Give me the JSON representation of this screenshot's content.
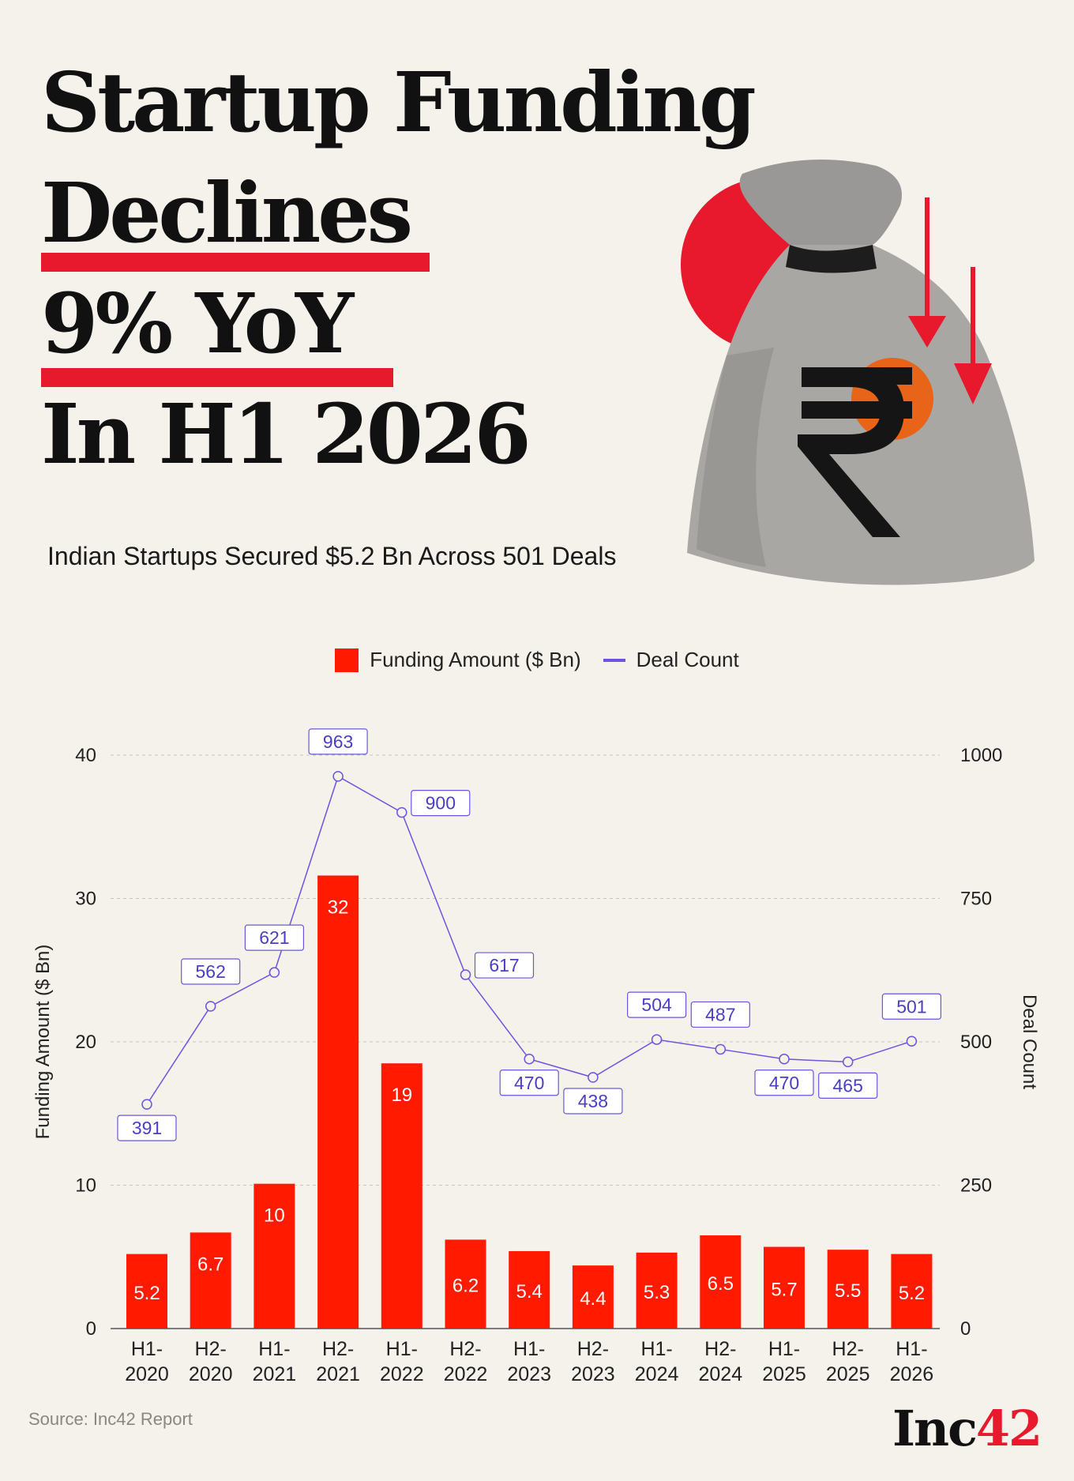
{
  "headline": {
    "line1": "Startup Funding",
    "line2": "Declines",
    "line3": "9% YoY",
    "line4": "In H1 2026"
  },
  "subtitle": "Indian Startups Secured $5.2 Bn Across 501 Deals",
  "hero_icon": "rupee-money-bag-icon",
  "colors": {
    "accent": "#e8192c",
    "bar": "#ff1a00",
    "line": "#6a55e0",
    "background": "#f5f1eb"
  },
  "chart_data": {
    "type": "bar+line",
    "categories": [
      "H1-2020",
      "H2-2020",
      "H1-2021",
      "H2-2021",
      "H1-2022",
      "H2-2022",
      "H1-2023",
      "H2-2023",
      "H1-2024",
      "H2-2024",
      "H1-2025",
      "H2-2025",
      "H1-2026"
    ],
    "x_tick_labels": [
      [
        "H1-",
        "2020"
      ],
      [
        "H2-",
        "2020"
      ],
      [
        "H1-",
        "2021"
      ],
      [
        "H2-",
        "2021"
      ],
      [
        "H1-",
        "2022"
      ],
      [
        "H2-",
        "2022"
      ],
      [
        "H1-",
        "2023"
      ],
      [
        "H2-",
        "2023"
      ],
      [
        "H1-",
        "2024"
      ],
      [
        "H2-",
        "2024"
      ],
      [
        "H1-",
        "2025"
      ],
      [
        "H2-",
        "2025"
      ],
      [
        "H1-",
        "2026"
      ]
    ],
    "series": [
      {
        "name": "Funding Amount ($ Bn)",
        "type": "bar",
        "axis": "left",
        "values": [
          5.2,
          6.7,
          10.1,
          31.6,
          18.5,
          6.2,
          5.4,
          4.4,
          5.3,
          6.5,
          5.7,
          5.5,
          5.2
        ],
        "labels": [
          "5.2",
          "6.7",
          "10",
          "32",
          "19",
          "6.2",
          "5.4",
          "4.4",
          "5.3",
          "6.5",
          "5.7",
          "5.5",
          "5.2"
        ]
      },
      {
        "name": "Deal Count",
        "type": "line",
        "axis": "right",
        "values": [
          391,
          562,
          621,
          963,
          900,
          617,
          470,
          438,
          504,
          487,
          470,
          465,
          501
        ],
        "labels": [
          "391",
          "562",
          "621",
          "963",
          "900",
          "617",
          "470",
          "438",
          "504",
          "487",
          "470",
          "465",
          "501"
        ],
        "label_positions": [
          "below",
          "above",
          "above",
          "above",
          "right",
          "right",
          "below",
          "below",
          "above",
          "above",
          "below",
          "below",
          "above"
        ]
      }
    ],
    "y_left": {
      "label": "Funding Amount ($ Bn)",
      "ticks": [
        "0",
        "10",
        "20",
        "30",
        "40"
      ],
      "range": [
        0,
        40
      ]
    },
    "y_right": {
      "label": "Deal Count",
      "ticks": [
        "0",
        "250",
        "500",
        "750",
        "1000"
      ],
      "range": [
        0,
        1000
      ]
    },
    "grid": true,
    "legend_position": "top-center"
  },
  "footer": {
    "source": "Source: Inc42 Report",
    "brand_text": "Inc",
    "brand_num": "42"
  }
}
